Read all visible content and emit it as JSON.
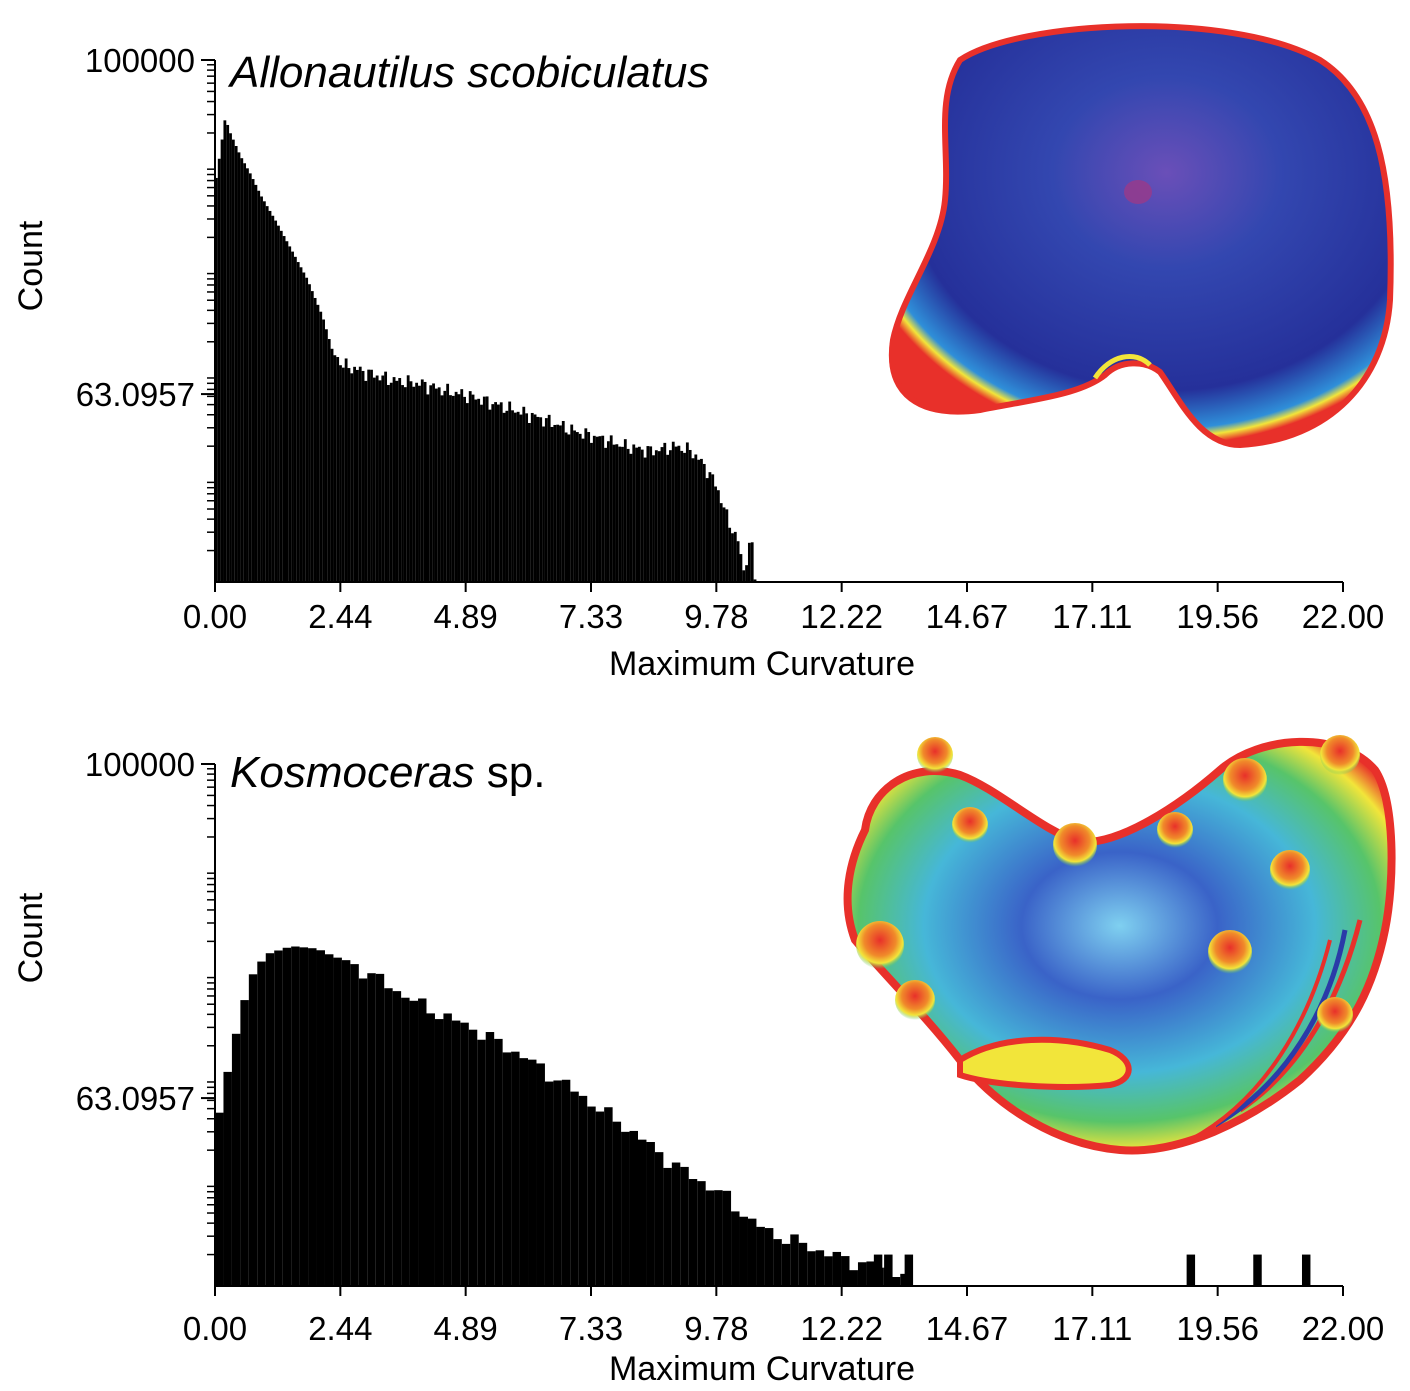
{
  "chart_data": [
    {
      "type": "bar",
      "title": {
        "species": "Allonautilus scobiculatus",
        "suffix": ""
      },
      "xlabel": "Maximum Curvature",
      "ylabel": "Count",
      "xlim": [
        0,
        22
      ],
      "ylim": [
        1,
        100000
      ],
      "yscale": "log",
      "xticks": [
        "0.00",
        "2.44",
        "4.89",
        "7.33",
        "9.78",
        "12.22",
        "14.67",
        "17.11",
        "19.56",
        "22.00"
      ],
      "yticks": [
        {
          "value": 100000,
          "label": "100000"
        },
        {
          "value": 63.0957,
          "label": "63.0957"
        }
      ],
      "bin_width": 0.055,
      "bins": [
        [
          0.0,
          6000
        ],
        [
          0.2,
          28000
        ],
        [
          0.3,
          20000
        ],
        [
          0.5,
          12000
        ],
        [
          0.7,
          8000
        ],
        [
          0.9,
          5000
        ],
        [
          1.2,
          2800
        ],
        [
          1.5,
          1500
        ],
        [
          1.8,
          800
        ],
        [
          2.1,
          350
        ],
        [
          2.3,
          160
        ],
        [
          2.5,
          120
        ],
        [
          3.0,
          100
        ],
        [
          3.5,
          85
        ],
        [
          4.0,
          80
        ],
        [
          4.5,
          68
        ],
        [
          5.0,
          60
        ],
        [
          5.5,
          50
        ],
        [
          6.0,
          42
        ],
        [
          6.5,
          35
        ],
        [
          7.0,
          28
        ],
        [
          7.5,
          24
        ],
        [
          8.0,
          20
        ],
        [
          8.5,
          18
        ],
        [
          9.0,
          20
        ],
        [
          9.3,
          18
        ],
        [
          9.6,
          12
        ],
        [
          9.8,
          8
        ],
        [
          10.0,
          4
        ],
        [
          10.2,
          2.5
        ],
        [
          10.3,
          1.3
        ],
        [
          10.47,
          2.5
        ],
        [
          10.6,
          0
        ]
      ]
    },
    {
      "type": "bar",
      "title": {
        "species": "Kosmoceras",
        "suffix": " sp."
      },
      "xlabel": "Maximum Curvature",
      "ylabel": "Count",
      "xlim": [
        0,
        22
      ],
      "ylim": [
        1,
        100000
      ],
      "yscale": "log",
      "xticks": [
        "0.00",
        "2.44",
        "4.89",
        "7.33",
        "9.78",
        "12.22",
        "14.67",
        "17.11",
        "19.56",
        "22.00"
      ],
      "yticks": [
        {
          "value": 100000,
          "label": "100000"
        },
        {
          "value": 63.0957,
          "label": "63.0957"
        }
      ],
      "bin_width": 0.165,
      "bins": [
        [
          0.0,
          30
        ],
        [
          0.1,
          50
        ],
        [
          0.3,
          150
        ],
        [
          0.5,
          400
        ],
        [
          0.7,
          900
        ],
        [
          1.0,
          1500
        ],
        [
          1.5,
          1800
        ],
        [
          2.0,
          1700
        ],
        [
          2.5,
          1300
        ],
        [
          3.0,
          1000
        ],
        [
          3.5,
          700
        ],
        [
          4.0,
          500
        ],
        [
          4.5,
          380
        ],
        [
          5.0,
          300
        ],
        [
          5.5,
          220
        ],
        [
          6.0,
          160
        ],
        [
          6.5,
          110
        ],
        [
          7.0,
          75
        ],
        [
          7.5,
          50
        ],
        [
          8.0,
          34
        ],
        [
          8.5,
          22
        ],
        [
          9.0,
          14
        ],
        [
          9.5,
          10
        ],
        [
          10.0,
          7
        ],
        [
          10.5,
          4
        ],
        [
          11.0,
          3
        ],
        [
          11.5,
          2.5
        ],
        [
          12.0,
          2
        ],
        [
          12.5,
          1.7
        ],
        [
          13.0,
          1.5
        ],
        [
          13.5,
          1.3
        ]
      ],
      "isolated_bars": [
        [
          12.85,
          2
        ],
        [
          13.05,
          2
        ],
        [
          13.45,
          2
        ],
        [
          18.95,
          2
        ],
        [
          20.25,
          2
        ],
        [
          21.2,
          2
        ]
      ]
    }
  ],
  "images": [
    {
      "description_icon": "shell-curvature-render-top",
      "palette": [
        "#1f2a8f",
        "#3fa9e0",
        "#4fc36a",
        "#f2e53a",
        "#e8302a"
      ]
    },
    {
      "description_icon": "shell-curvature-render-bottom",
      "palette": [
        "#1f2a8f",
        "#3fa9e0",
        "#4fc36a",
        "#f2e53a",
        "#e8302a"
      ]
    }
  ]
}
